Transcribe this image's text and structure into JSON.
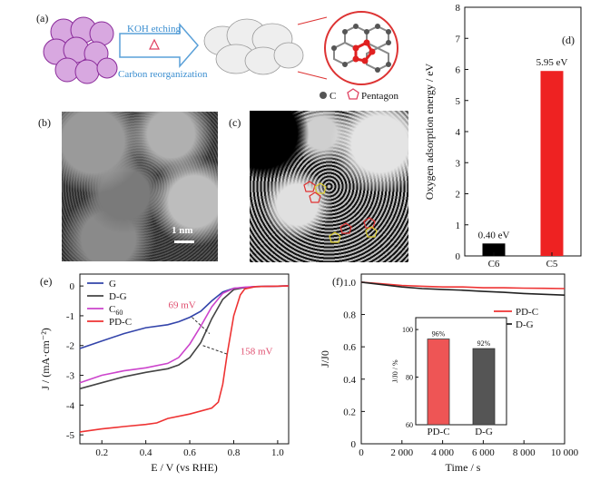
{
  "panel_a": {
    "label": "(a)",
    "arrow_top": "KOH etching",
    "arrow_mid": "Δ",
    "arrow_bottom": "Carbon reorganization",
    "legend_c": "C",
    "legend_pentagon": "Pentagon"
  },
  "panel_b": {
    "label": "(b)",
    "scale": "1 nm"
  },
  "panel_c": {
    "label": "(c)"
  },
  "chart_data": [
    {
      "id": "d",
      "panel_label": "(d)",
      "type": "bar",
      "categories": [
        "C6",
        "C5"
      ],
      "values": [
        0.4,
        5.95
      ],
      "value_labels": [
        "0.40 eV",
        "5.95 eV"
      ],
      "colors": [
        "#000000",
        "#ee2222"
      ],
      "ylabel": "Oxygen adsorption energy / eV",
      "ylim": [
        0,
        8
      ],
      "yticks": [
        0,
        1,
        2,
        3,
        4,
        5,
        6,
        7,
        8
      ]
    },
    {
      "id": "e",
      "panel_label": "(e)",
      "type": "line",
      "xlabel": "E / V (vs RHE)",
      "ylabel": "J / (mA·cm⁻²)",
      "xlim": [
        0.1,
        1.05
      ],
      "ylim": [
        -5.3,
        0.4
      ],
      "xticks": [
        0.2,
        0.4,
        0.6,
        0.8,
        1.0
      ],
      "xtick_labels": [
        "0.2",
        "0.4",
        "0.6",
        "0.8",
        "1.0"
      ],
      "yticks": [
        0,
        -1,
        -2,
        -3,
        -4,
        -5
      ],
      "ytick_labels": [
        "0",
        "-1",
        "-2",
        "-3",
        "-4",
        "-5"
      ],
      "legend": [
        "G",
        "D-G",
        "C60",
        "PD-C"
      ],
      "annotations": [
        "69 mV",
        "158 mV"
      ],
      "series": [
        {
          "name": "G",
          "color": "#3344aa",
          "x": [
            0.1,
            0.2,
            0.3,
            0.4,
            0.5,
            0.55,
            0.6,
            0.65,
            0.7,
            0.75,
            0.8,
            0.85,
            0.9,
            1.05
          ],
          "y": [
            -2.1,
            -1.85,
            -1.6,
            -1.4,
            -1.3,
            -1.2,
            -1.05,
            -0.85,
            -0.5,
            -0.2,
            -0.08,
            -0.05,
            -0.02,
            0
          ]
        },
        {
          "name": "D-G",
          "color": "#444444",
          "x": [
            0.1,
            0.2,
            0.3,
            0.4,
            0.5,
            0.55,
            0.6,
            0.65,
            0.7,
            0.75,
            0.8,
            0.85,
            0.9,
            1.05
          ],
          "y": [
            -3.45,
            -3.25,
            -3.05,
            -2.9,
            -2.78,
            -2.65,
            -2.4,
            -1.9,
            -1.1,
            -0.45,
            -0.12,
            -0.05,
            -0.02,
            0
          ]
        },
        {
          "name": "C60",
          "color": "#cc44cc",
          "x": [
            0.1,
            0.2,
            0.3,
            0.4,
            0.5,
            0.55,
            0.6,
            0.65,
            0.7,
            0.75,
            0.8,
            0.85,
            0.9,
            1.05
          ],
          "y": [
            -3.25,
            -3.0,
            -2.85,
            -2.75,
            -2.6,
            -2.4,
            -1.95,
            -1.35,
            -0.7,
            -0.25,
            -0.08,
            -0.04,
            -0.02,
            0
          ]
        },
        {
          "name": "PD-C",
          "color": "#ee3333",
          "x": [
            0.1,
            0.2,
            0.3,
            0.4,
            0.45,
            0.5,
            0.6,
            0.7,
            0.73,
            0.75,
            0.77,
            0.8,
            0.83,
            0.85,
            0.9,
            1.05
          ],
          "y": [
            -4.9,
            -4.8,
            -4.72,
            -4.65,
            -4.6,
            -4.45,
            -4.3,
            -4.1,
            -3.9,
            -3.3,
            -2.3,
            -1.0,
            -0.3,
            -0.1,
            -0.02,
            0
          ]
        }
      ]
    },
    {
      "id": "f",
      "panel_label": "(f)",
      "type": "line",
      "xlabel": "Time / s",
      "ylabel": "J/J0",
      "xlim": [
        0,
        10000
      ],
      "ylim": [
        0,
        1.05
      ],
      "xticks": [
        0,
        2000,
        4000,
        6000,
        8000,
        10000
      ],
      "xtick_labels": [
        "0",
        "2 000",
        "4 000",
        "6 000",
        "8 000",
        "10 000"
      ],
      "yticks": [
        0,
        0.2,
        0.4,
        0.6,
        0.8,
        1.0
      ],
      "ytick_labels": [
        "0",
        "0.2",
        "0.4",
        "0.6",
        "0.8",
        "1.0"
      ],
      "legend": [
        "PD-C",
        "D-G"
      ],
      "series": [
        {
          "name": "PD-C",
          "color": "#ee3333",
          "x": [
            0,
            1000,
            2000,
            3000,
            4000,
            5000,
            6000,
            7000,
            8000,
            9000,
            10000
          ],
          "y": [
            1.0,
            0.99,
            0.98,
            0.975,
            0.97,
            0.97,
            0.965,
            0.965,
            0.963,
            0.962,
            0.96
          ]
        },
        {
          "name": "D-G",
          "color": "#222222",
          "x": [
            0,
            1000,
            2000,
            3000,
            4000,
            5000,
            6000,
            7000,
            8000,
            9000,
            10000
          ],
          "y": [
            1.0,
            0.985,
            0.97,
            0.96,
            0.955,
            0.95,
            0.943,
            0.937,
            0.93,
            0.925,
            0.92
          ]
        }
      ],
      "inset": {
        "type": "bar",
        "categories": [
          "PD-C",
          "D-G"
        ],
        "values": [
          96,
          92
        ],
        "value_labels": [
          "96%",
          "92%"
        ],
        "colors": [
          "#ee5555",
          "#555555"
        ],
        "ylabel": "J/J0 / %",
        "ylim": [
          60,
          105
        ],
        "yticks": [
          60,
          80,
          100
        ],
        "ytick_labels": [
          "60",
          "80",
          "100"
        ]
      }
    }
  ]
}
